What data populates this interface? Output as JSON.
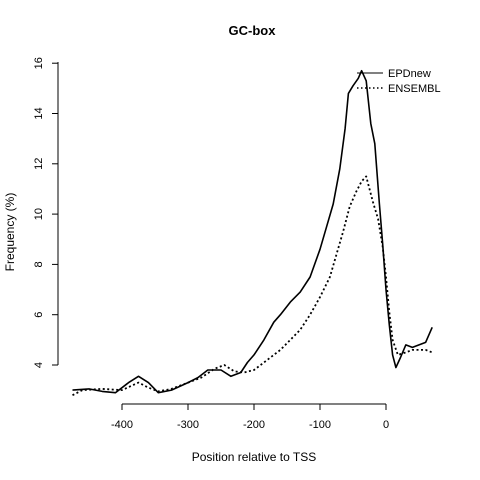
{
  "chart_data": {
    "type": "line",
    "title": "GC-box",
    "xlabel": "Position relative to TSS",
    "ylabel": "Frequency (%)",
    "xlim": [
      -475,
      75
    ],
    "ylim": [
      3,
      16
    ],
    "x_ticks": [
      -400,
      -300,
      -200,
      -100,
      0
    ],
    "y_ticks": [
      4,
      6,
      8,
      10,
      12,
      14,
      16
    ],
    "grid": false,
    "legend_position": "top-right",
    "series": [
      {
        "name": "EPDnew",
        "style": "solid",
        "color": "#000000",
        "points": [
          [
            -475,
            3.0
          ],
          [
            -450,
            3.05
          ],
          [
            -430,
            2.95
          ],
          [
            -410,
            2.9
          ],
          [
            -390,
            3.3
          ],
          [
            -375,
            3.55
          ],
          [
            -360,
            3.3
          ],
          [
            -345,
            2.9
          ],
          [
            -325,
            3.0
          ],
          [
            -300,
            3.3
          ],
          [
            -285,
            3.5
          ],
          [
            -270,
            3.8
          ],
          [
            -250,
            3.8
          ],
          [
            -235,
            3.55
          ],
          [
            -220,
            3.7
          ],
          [
            -210,
            4.1
          ],
          [
            -200,
            4.4
          ],
          [
            -185,
            5.0
          ],
          [
            -170,
            5.7
          ],
          [
            -160,
            6.0
          ],
          [
            -145,
            6.5
          ],
          [
            -130,
            6.9
          ],
          [
            -115,
            7.5
          ],
          [
            -100,
            8.6
          ],
          [
            -90,
            9.5
          ],
          [
            -80,
            10.4
          ],
          [
            -70,
            11.8
          ],
          [
            -62,
            13.4
          ],
          [
            -57,
            14.8
          ],
          [
            -50,
            15.1
          ],
          [
            -42,
            15.4
          ],
          [
            -37,
            15.7
          ],
          [
            -30,
            15.3
          ],
          [
            -23,
            13.6
          ],
          [
            -17,
            12.8
          ],
          [
            -10,
            10.4
          ],
          [
            -5,
            8.8
          ],
          [
            0,
            7.0
          ],
          [
            5,
            5.6
          ],
          [
            10,
            4.4
          ],
          [
            15,
            3.9
          ],
          [
            22,
            4.3
          ],
          [
            30,
            4.8
          ],
          [
            40,
            4.7
          ],
          [
            50,
            4.8
          ],
          [
            60,
            4.9
          ],
          [
            70,
            5.5
          ]
        ]
      },
      {
        "name": "ENSEMBL",
        "style": "dotted",
        "color": "#000000",
        "points": [
          [
            -475,
            2.8
          ],
          [
            -460,
            3.0
          ],
          [
            -430,
            3.05
          ],
          [
            -400,
            3.0
          ],
          [
            -375,
            3.3
          ],
          [
            -360,
            3.1
          ],
          [
            -345,
            2.95
          ],
          [
            -325,
            3.05
          ],
          [
            -300,
            3.3
          ],
          [
            -280,
            3.5
          ],
          [
            -260,
            3.85
          ],
          [
            -245,
            4.0
          ],
          [
            -230,
            3.75
          ],
          [
            -215,
            3.7
          ],
          [
            -200,
            3.8
          ],
          [
            -185,
            4.1
          ],
          [
            -170,
            4.4
          ],
          [
            -160,
            4.6
          ],
          [
            -145,
            5.0
          ],
          [
            -130,
            5.4
          ],
          [
            -115,
            6.0
          ],
          [
            -100,
            6.7
          ],
          [
            -85,
            7.5
          ],
          [
            -75,
            8.4
          ],
          [
            -65,
            9.3
          ],
          [
            -55,
            10.3
          ],
          [
            -45,
            10.9
          ],
          [
            -37,
            11.3
          ],
          [
            -30,
            11.5
          ],
          [
            -20,
            10.5
          ],
          [
            -12,
            9.8
          ],
          [
            -5,
            8.7
          ],
          [
            0,
            7.5
          ],
          [
            5,
            6.1
          ],
          [
            10,
            5.0
          ],
          [
            18,
            4.4
          ],
          [
            30,
            4.5
          ],
          [
            40,
            4.6
          ],
          [
            50,
            4.6
          ],
          [
            60,
            4.6
          ],
          [
            70,
            4.5
          ]
        ]
      }
    ]
  }
}
